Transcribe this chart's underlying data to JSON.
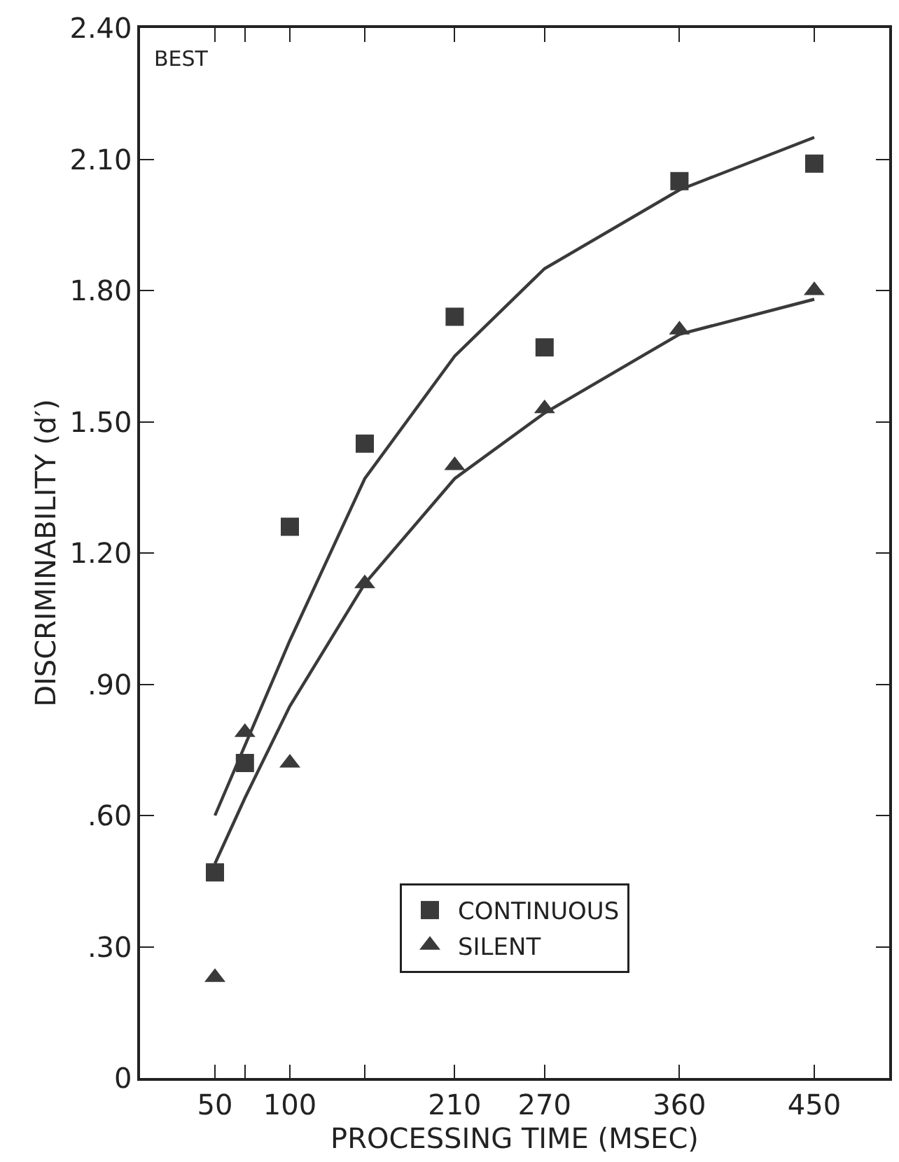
{
  "chart_data": {
    "type": "scatter",
    "xlabel": "PROCESSING TIME (MSEC)",
    "ylabel": "DISCRIMINABILITY (d′)",
    "annotations": [
      "BEST"
    ],
    "xlim": [
      0,
      500
    ],
    "xticks": [
      50,
      {
        "value": 70,
        "label": null
      },
      100,
      {
        "value": 150,
        "label": null
      },
      210,
      270,
      360,
      450
    ],
    "ylim": [
      0,
      2.4
    ],
    "yticks": [
      0,
      {
        "value": 0.3,
        "label": ".30"
      },
      {
        "value": 0.6,
        "label": ".60"
      },
      {
        "value": 0.9,
        "label": ".90"
      },
      {
        "value": 1.2,
        "label": "1.20"
      },
      {
        "value": 1.5,
        "label": "1.50"
      },
      {
        "value": 1.8,
        "label": "1.80"
      },
      {
        "value": 2.1,
        "label": "2.10"
      },
      {
        "value": 2.4,
        "label": "2.40"
      }
    ],
    "grid": false,
    "legend": "bottom",
    "series": [
      {
        "name": "CONTINUOUS",
        "marker": "square",
        "color": "#3a3a3a",
        "x": [
          50,
          70,
          100,
          150,
          210,
          270,
          360,
          450
        ],
        "values": [
          0.47,
          0.72,
          1.26,
          1.45,
          1.74,
          1.67,
          2.05,
          2.09
        ]
      },
      {
        "name": "SILENT",
        "marker": "triangle",
        "color": "#3a3a3a",
        "x": [
          50,
          70,
          100,
          150,
          210,
          270,
          360,
          450
        ],
        "values": [
          0.23,
          0.79,
          0.72,
          1.13,
          1.4,
          1.53,
          1.71,
          1.8
        ]
      },
      {
        "type": "line",
        "marker": "none",
        "line_style": "solid",
        "color": "#3a3a3a",
        "x": [
          50,
          100,
          150,
          210,
          270,
          360,
          450
        ],
        "values": [
          0.6,
          1.0,
          1.37,
          1.65,
          1.85,
          2.03,
          2.15
        ]
      },
      {
        "type": "line",
        "marker": "none",
        "line_style": "solid",
        "color": "#3a3a3a",
        "x": [
          50,
          70,
          100,
          150,
          210,
          270,
          360,
          450
        ],
        "values": [
          0.49,
          0.64,
          0.85,
          1.13,
          1.37,
          1.52,
          1.7,
          1.78
        ]
      }
    ]
  }
}
